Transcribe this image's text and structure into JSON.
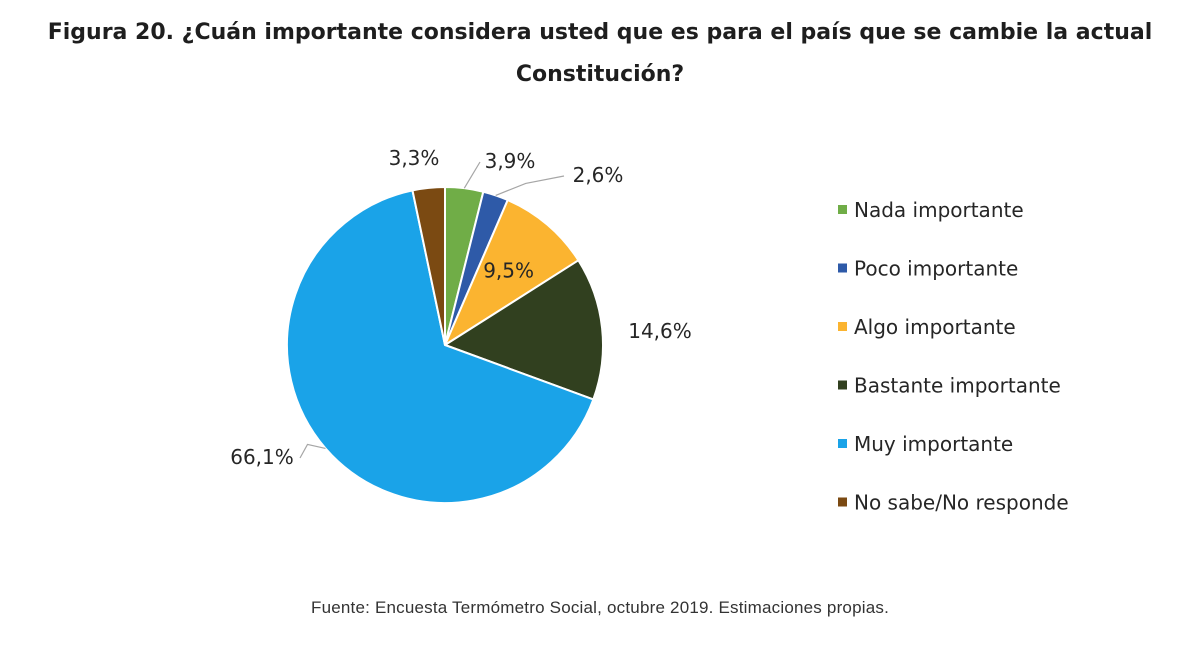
{
  "title_line1": "Figura 20. ¿Cuán importante considera usted que es para el país que se cambie la actual",
  "title_line2": "Constitución?",
  "source": "Fuente: Encuesta Termómetro Social, octubre 2019. Estimaciones propias.",
  "chart_data": {
    "type": "pie",
    "title": "Figura 20. ¿Cuán importante considera usted que es para el país que se cambie la actual Constitución?",
    "legend_position": "right",
    "start_angle_deg": 0,
    "direction": "clockwise",
    "slices": [
      {
        "name": "Nada importante",
        "value": 3.9,
        "label": "3,9%",
        "color": "#70ad47"
      },
      {
        "name": "Poco importante",
        "value": 2.6,
        "label": "2,6%",
        "color": "#2e5aa8"
      },
      {
        "name": "Algo importante",
        "value": 9.5,
        "label": "9,5%",
        "color": "#fbb430"
      },
      {
        "name": "Bastante importante",
        "value": 14.6,
        "label": "14,6%",
        "color": "#31401f"
      },
      {
        "name": "Muy importante",
        "value": 66.1,
        "label": "66,1%",
        "color": "#1aa3e8"
      },
      {
        "name": "No sabe/No responde",
        "value": 3.3,
        "label": "3,3%",
        "color": "#7b4a12"
      }
    ]
  }
}
